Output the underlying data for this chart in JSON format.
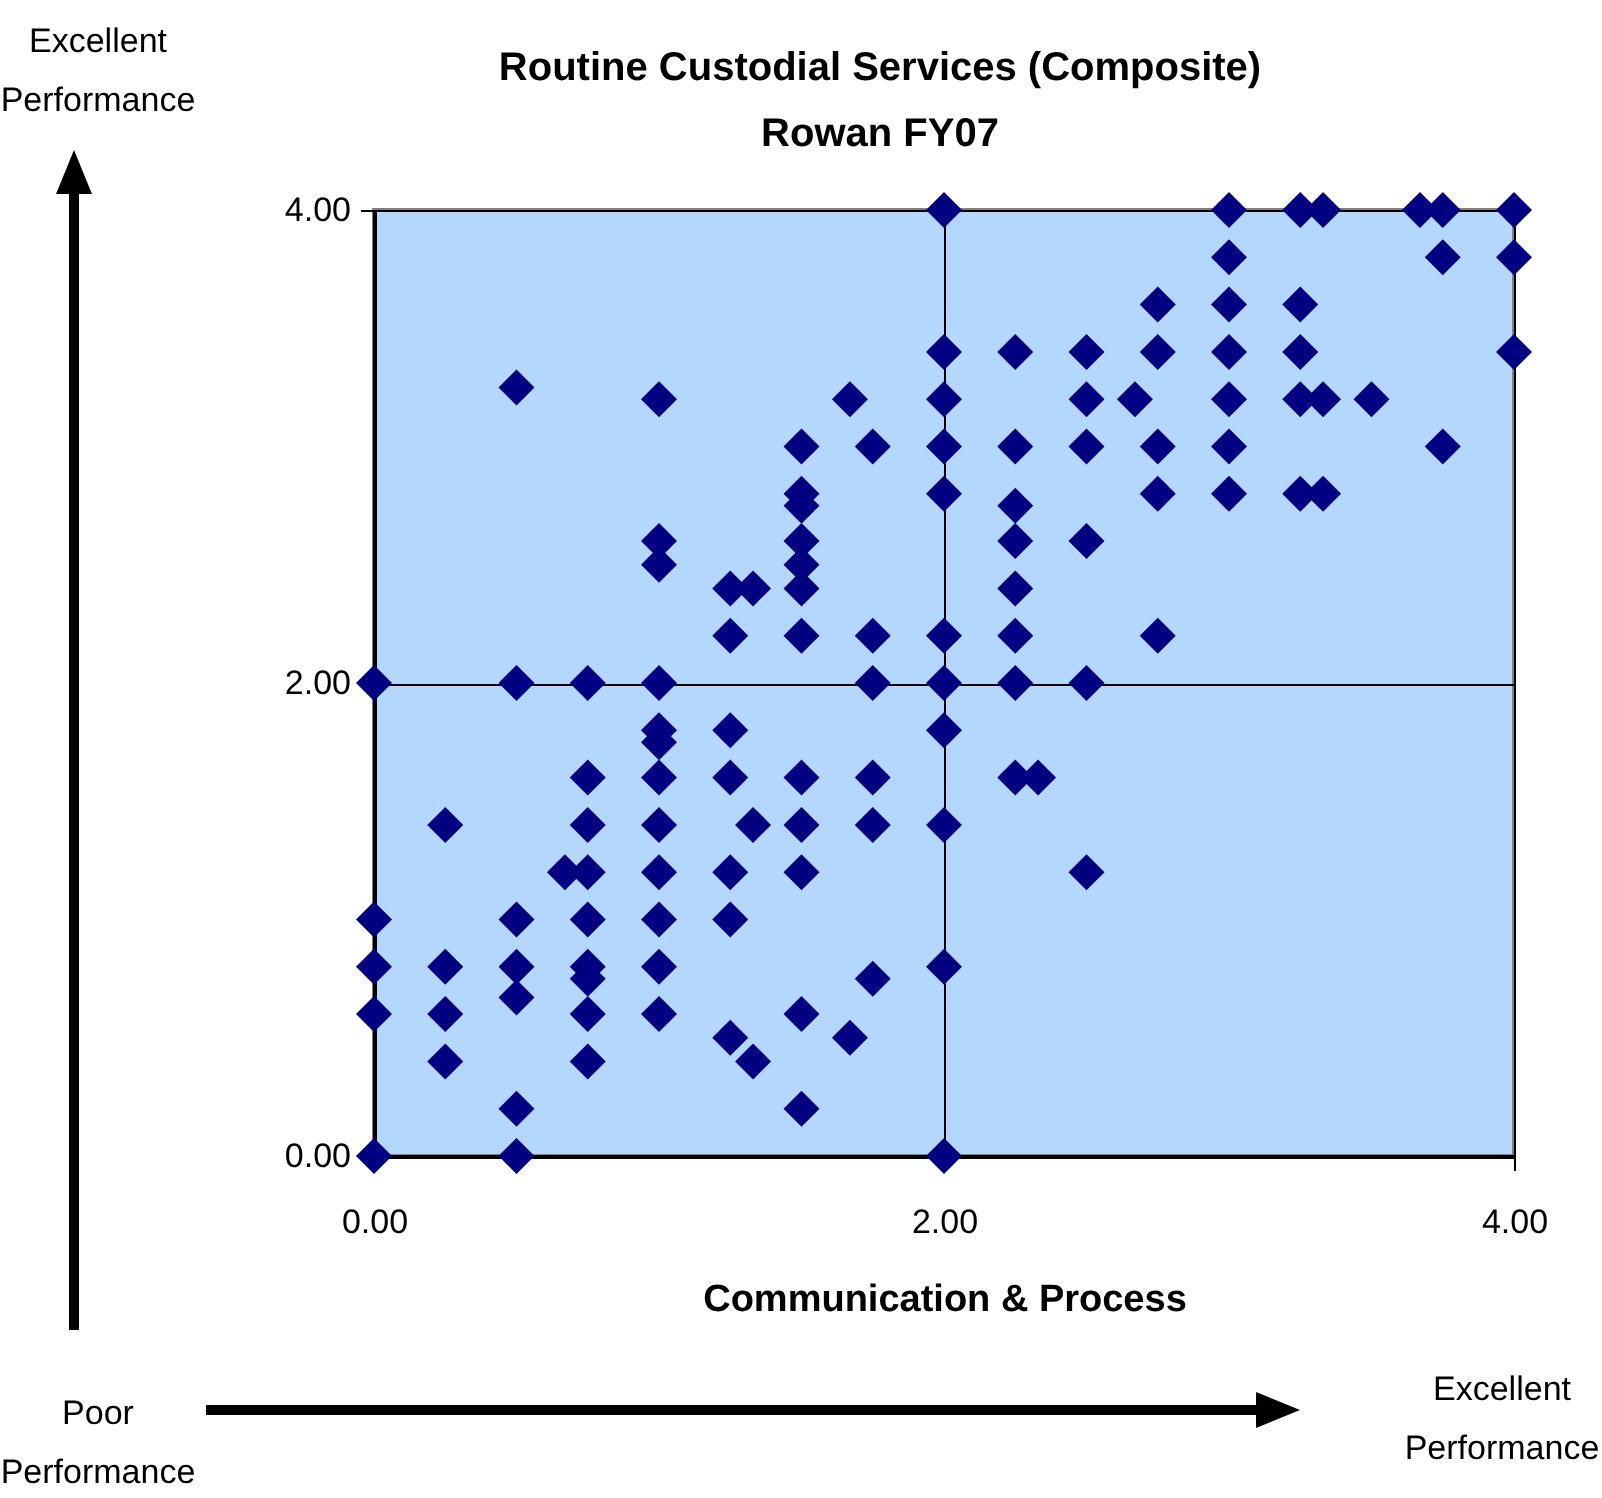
{
  "chart_data": {
    "type": "scatter",
    "title": "Routine Custodial Services (Composite)",
    "subtitle": "Rowan FY07",
    "xlabel": "Communication & Process",
    "annotations": [
      "Excellent\nPerformance",
      "Poor\nPerformance",
      "Excellent\nPerformance"
    ],
    "color": "#000080",
    "marker": "diamond",
    "grid": true,
    "xlim": [
      0,
      4
    ],
    "ylim": [
      0,
      4
    ],
    "xticks": [
      {
        "value": 0,
        "label": "0.00"
      },
      {
        "value": 2,
        "label": "2.00"
      },
      {
        "value": 4,
        "label": "4.00"
      }
    ],
    "yticks": [
      {
        "value": 0,
        "label": "0.00"
      },
      {
        "value": 2,
        "label": "2.00"
      },
      {
        "value": 4,
        "label": "4.00"
      }
    ],
    "x": [
      0,
      0,
      0,
      0,
      0,
      0.25,
      0.25,
      0.25,
      0.25,
      0.5,
      0.5,
      0.5,
      0.5,
      0.5,
      0.5,
      0.5,
      0.67,
      0.75,
      0.75,
      0.75,
      0.75,
      0.75,
      0.75,
      0.75,
      0.75,
      0.75,
      1,
      1,
      1,
      1,
      1,
      1,
      1,
      1,
      1,
      1,
      1,
      1,
      1.25,
      1.25,
      1.25,
      1.25,
      1.25,
      1.25,
      1.25,
      1.33,
      1.33,
      1.33,
      1.5,
      1.5,
      1.5,
      1.5,
      1.5,
      1.5,
      1.5,
      1.5,
      1.5,
      1.5,
      1.5,
      1.5,
      1.67,
      1.67,
      1.75,
      1.75,
      1.75,
      1.75,
      1.75,
      1.75,
      2,
      2,
      2,
      2,
      2,
      2,
      2,
      2,
      2,
      2,
      2,
      2.25,
      2.25,
      2.25,
      2.25,
      2.25,
      2.25,
      2.25,
      2.25,
      2.33,
      2.5,
      2.5,
      2.5,
      2.5,
      2.5,
      2.5,
      2.67,
      2.75,
      2.75,
      2.75,
      2.75,
      2.75,
      3,
      3,
      3,
      3,
      3,
      3,
      3,
      3.25,
      3.25,
      3.25,
      3.25,
      3.25,
      3.33,
      3.33,
      3.33,
      3.5,
      3.67,
      3.75,
      3.75,
      3.75,
      4,
      4,
      4
    ],
    "values": [
      2.0,
      1.0,
      0.8,
      0.6,
      0,
      1.4,
      0.8,
      0.6,
      0.4,
      3.25,
      2.0,
      1.0,
      0.8,
      0.67,
      0.2,
      0,
      1.2,
      2.0,
      1.6,
      1.4,
      1.2,
      1.0,
      0.8,
      0.75,
      0.6,
      0.4,
      3.2,
      2.6,
      2.5,
      2.0,
      1.8,
      1.75,
      1.6,
      1.4,
      1.2,
      1.0,
      0.8,
      0.6,
      2.4,
      2.2,
      1.8,
      1.6,
      1.2,
      1.0,
      0.5,
      2.4,
      1.4,
      0.4,
      3.0,
      2.8,
      2.75,
      2.6,
      2.5,
      2.4,
      2.2,
      1.6,
      1.4,
      1.2,
      0.6,
      0.2,
      3.2,
      0.5,
      3.0,
      2.2,
      2.0,
      1.6,
      1.4,
      0.75,
      4.0,
      3.4,
      3.2,
      3.0,
      2.8,
      2.2,
      2.0,
      1.8,
      1.4,
      0.8,
      0,
      3.4,
      3.0,
      2.75,
      2.6,
      2.4,
      2.2,
      2.0,
      1.6,
      1.6,
      3.4,
      3.2,
      3.0,
      2.6,
      2.0,
      1.2,
      3.2,
      3.6,
      3.4,
      3.0,
      2.8,
      2.2,
      4.0,
      3.8,
      3.6,
      3.4,
      3.2,
      3.0,
      2.8,
      4.0,
      3.6,
      3.4,
      3.2,
      2.8,
      4.0,
      3.2,
      2.8,
      3.2,
      4.0,
      4.0,
      3.8,
      3.0,
      4.0,
      3.8,
      3.4
    ]
  }
}
